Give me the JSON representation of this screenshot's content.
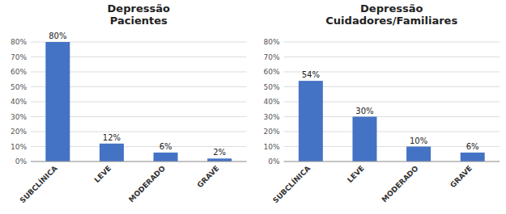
{
  "chart_data": [
    {
      "type": "bar",
      "title": "Depressão\nPacientes",
      "categories": [
        "SUBCLÍNICA",
        "LEVE",
        "MODERADO",
        "GRAVE"
      ],
      "values": [
        80,
        12,
        6,
        2
      ],
      "value_labels": [
        "80%",
        "12%",
        "6%",
        "2%"
      ],
      "data_labels": true,
      "color": "#4472C4",
      "ylim": [
        0,
        80
      ],
      "yticks": [
        {
          "value": 0,
          "label": "0%"
        },
        {
          "value": 10,
          "label": "10%"
        },
        {
          "value": 20,
          "label": "20%"
        },
        {
          "value": 30,
          "label": "30%"
        },
        {
          "value": 40,
          "label": "40%"
        },
        {
          "value": 50,
          "label": "50%"
        },
        {
          "value": 60,
          "label": "60%"
        },
        {
          "value": 70,
          "label": "70%"
        },
        {
          "value": 80,
          "label": "80%"
        }
      ],
      "grid": true
    },
    {
      "type": "bar",
      "title": "Depressão\nCuidadores/Familiares",
      "categories": [
        "SUBCLÍNICA",
        "LEVE",
        "MODERADO",
        "GRAVE"
      ],
      "values": [
        54,
        30,
        10,
        6
      ],
      "value_labels": [
        "54%",
        "30%",
        "10%",
        "6%"
      ],
      "data_labels": true,
      "color": "#4472C4",
      "ylim": [
        0,
        80
      ],
      "yticks": [
        {
          "value": 0,
          "label": "0%"
        },
        {
          "value": 10,
          "label": "10%"
        },
        {
          "value": 20,
          "label": "20%"
        },
        {
          "value": 30,
          "label": "30%"
        },
        {
          "value": 40,
          "label": "40%"
        },
        {
          "value": 50,
          "label": "50%"
        },
        {
          "value": 60,
          "label": "60%"
        },
        {
          "value": 70,
          "label": "70%"
        },
        {
          "value": 80,
          "label": "80%"
        }
      ],
      "grid": true
    }
  ]
}
